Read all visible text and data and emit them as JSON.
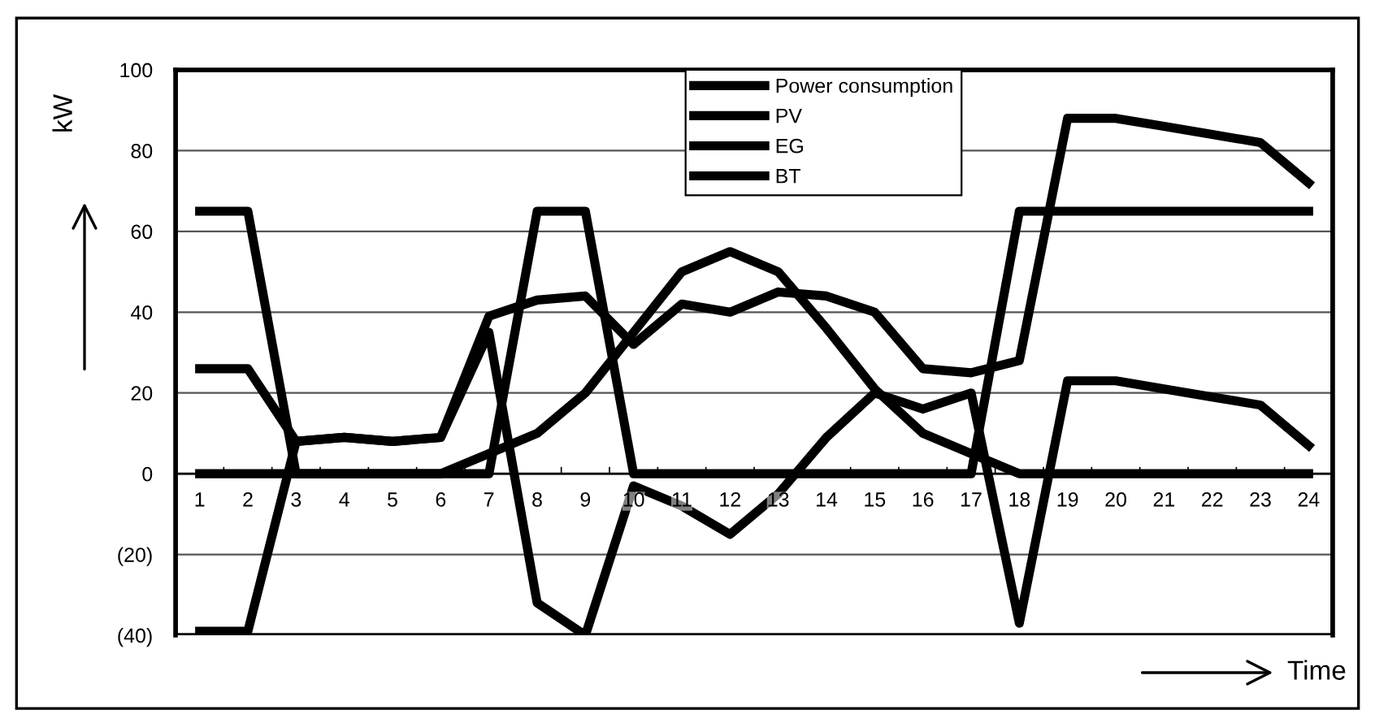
{
  "chart_data": {
    "type": "line",
    "ylabel": "kW",
    "xlabel": "Time",
    "categories": [
      "1",
      "2",
      "3",
      "4",
      "5",
      "6",
      "7",
      "8",
      "9",
      "10",
      "11",
      "12",
      "13",
      "14",
      "15",
      "16",
      "17",
      "18",
      "19",
      "20",
      "21",
      "22",
      "23",
      "24"
    ],
    "series": [
      {
        "name": "Power consumption",
        "color": "#000000",
        "values": [
          26,
          26,
          8,
          9,
          8,
          9,
          39,
          43,
          44,
          32,
          42,
          40,
          45,
          44,
          40,
          26,
          25,
          28,
          88,
          88,
          86,
          84,
          82,
          72
        ]
      },
      {
        "name": "PV",
        "color": "#000000",
        "values": [
          0,
          0,
          0,
          0,
          0,
          0,
          5,
          10,
          20,
          35,
          50,
          55,
          50,
          36,
          21,
          10,
          5,
          0,
          0,
          0,
          0,
          0,
          0,
          0
        ]
      },
      {
        "name": "EG",
        "color": "#000000",
        "values": [
          65,
          65,
          0,
          0,
          0,
          0,
          0,
          65,
          65,
          0,
          0,
          0,
          0,
          0,
          0,
          0,
          0,
          65,
          65,
          65,
          65,
          65,
          65,
          65
        ]
      },
      {
        "name": "BT",
        "color": "#000000",
        "values": [
          -39,
          -39,
          8,
          9,
          8,
          9,
          35,
          -32,
          -40,
          -3,
          -8,
          -15,
          -5,
          9,
          20,
          16,
          20,
          -37,
          23,
          23,
          21,
          19,
          17,
          7
        ]
      }
    ],
    "ylim": [
      -40,
      100
    ],
    "yticks": [
      {
        "value": -40,
        "label": "(40)"
      },
      {
        "value": -20,
        "label": "(20)"
      },
      0,
      20,
      40,
      60,
      80,
      100
    ],
    "grid": "y",
    "legend": "top",
    "marker": "none",
    "line_style": "solid"
  }
}
